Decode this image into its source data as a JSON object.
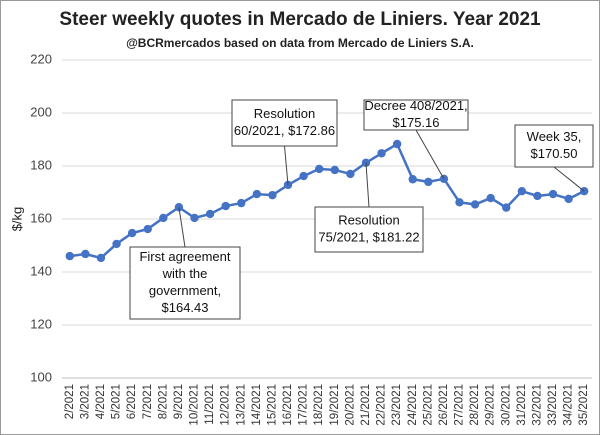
{
  "chart_data": {
    "type": "line",
    "title": "Steer weekly quotes in Mercado de Liniers. Year 2021",
    "subtitle": "@BCRmercados based on data from Mercado de Liniers S.A.",
    "y_label": "$/kg",
    "categories": [
      "2/2021",
      "3/2021",
      "4/2021",
      "5/2021",
      "6/2021",
      "7/2021",
      "8/2021",
      "9/2021",
      "10/2021",
      "11/2021",
      "12/2021",
      "13/2021",
      "14/2021",
      "15/2021",
      "16/2021",
      "17/2021",
      "18/2021",
      "19/2021",
      "20/2021",
      "21/2021",
      "22/2021",
      "23/2021",
      "24/2021",
      "25/2021",
      "26/2021",
      "27/2021",
      "28/2021",
      "29/2021",
      "30/2021",
      "31/2021",
      "32/2021",
      "33/2021",
      "34/2021",
      "35/2021"
    ],
    "series": [
      {
        "name": "Steer",
        "color": "#4472c4",
        "values": [
          146,
          146.8,
          145.3,
          150.6,
          154.7,
          156.2,
          160.4,
          164.43,
          160.4,
          161.9,
          164.9,
          166,
          169.4,
          169,
          172.86,
          176.2,
          178.9,
          178.5,
          177,
          181.22,
          184.8,
          188.3,
          175,
          174,
          175.16,
          166.3,
          165.5,
          167.9,
          164.3,
          170.5,
          168.7,
          169.4,
          167.6,
          170.5
        ]
      }
    ],
    "ylim": [
      100,
      220
    ],
    "yticks": [
      100,
      120,
      140,
      160,
      180,
      200,
      220
    ],
    "grid": true,
    "annotations": [
      {
        "lines": [
          "First agreement",
          "with the",
          "government,",
          "$164.43"
        ]
      },
      {
        "lines": [
          "Resolution",
          "60/2021, $172.86"
        ]
      },
      {
        "lines": [
          "Resolution",
          "75/2021, $181.22"
        ]
      },
      {
        "lines": [
          "Decree 408/2021,",
          "$175.16"
        ]
      },
      {
        "lines": [
          "Week 35,",
          "$170.50"
        ]
      }
    ]
  }
}
